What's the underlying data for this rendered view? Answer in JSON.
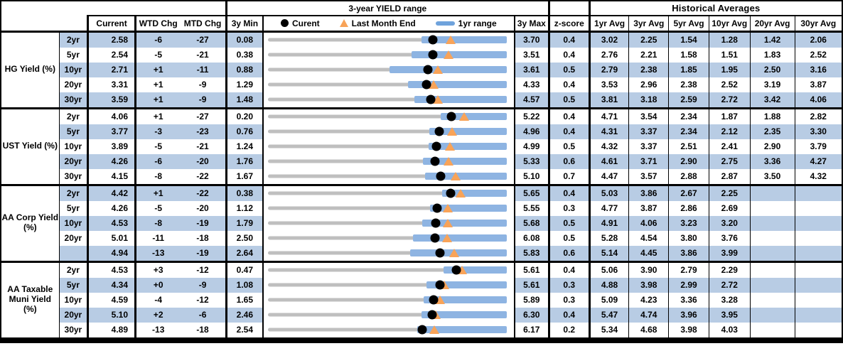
{
  "header": {
    "chart_title": "3-year YIELD range",
    "historical_title": "Historical Averages",
    "col_current": "Current",
    "col_wtd": "WTD Chg",
    "col_mtd": "MTD Chg",
    "col_3y_min": "3y Min",
    "col_3y_max": "3y Max",
    "col_z_score": "z-score",
    "avg_cols": [
      "1yr Avg",
      "3yr Avg",
      "5yr Avg",
      "10yr Avg",
      "20yr Avg",
      "30yr Avg"
    ],
    "legend_current": "Curent",
    "legend_last_month": "Last Month End",
    "legend_range": "1yr range"
  },
  "colors": {
    "row_stripe": "#B8CCE4",
    "range_bar": "#8EB4E2",
    "track_gray": "#BFBFBF",
    "triangle_orange": "#F8A358",
    "legend_dash_blue": "#6FA3DC",
    "dot_black": "#000000"
  },
  "groups": [
    {
      "label": "HG Yield (%)",
      "rows": [
        {
          "tenor": "2yr",
          "current": "2.58",
          "wtd": "-6",
          "mtd": "-27",
          "min": "0.08",
          "max": "3.70",
          "z": "0.4",
          "avgs": [
            "3.02",
            "2.25",
            "1.54",
            "1.28",
            "1.42",
            "2.06"
          ]
        },
        {
          "tenor": "5yr",
          "current": "2.54",
          "wtd": "-5",
          "mtd": "-21",
          "min": "0.38",
          "max": "3.51",
          "z": "0.4",
          "avgs": [
            "2.76",
            "2.21",
            "1.58",
            "1.51",
            "1.83",
            "2.52"
          ]
        },
        {
          "tenor": "10yr",
          "current": "2.71",
          "wtd": "+1",
          "mtd": "-11",
          "min": "0.88",
          "max": "3.61",
          "z": "0.5",
          "avgs": [
            "2.79",
            "2.38",
            "1.85",
            "1.95",
            "2.50",
            "3.16"
          ]
        },
        {
          "tenor": "20yr",
          "current": "3.31",
          "wtd": "+1",
          "mtd": "-9",
          "min": "1.29",
          "max": "4.33",
          "z": "0.4",
          "avgs": [
            "3.53",
            "2.96",
            "2.38",
            "2.52",
            "3.19",
            "3.87"
          ]
        },
        {
          "tenor": "30yr",
          "current": "3.59",
          "wtd": "+1",
          "mtd": "-9",
          "min": "1.48",
          "max": "4.57",
          "z": "0.5",
          "avgs": [
            "3.81",
            "3.18",
            "2.59",
            "2.72",
            "3.42",
            "4.06"
          ]
        }
      ]
    },
    {
      "label": "UST Yield (%)",
      "rows": [
        {
          "tenor": "2yr",
          "current": "4.06",
          "wtd": "+1",
          "mtd": "-27",
          "min": "0.20",
          "max": "5.22",
          "z": "0.4",
          "avgs": [
            "4.71",
            "3.54",
            "2.34",
            "1.87",
            "1.88",
            "2.82"
          ]
        },
        {
          "tenor": "5yr",
          "current": "3.77",
          "wtd": "-3",
          "mtd": "-23",
          "min": "0.76",
          "max": "4.96",
          "z": "0.4",
          "avgs": [
            "4.31",
            "3.37",
            "2.34",
            "2.12",
            "2.35",
            "3.30"
          ]
        },
        {
          "tenor": "10yr",
          "current": "3.89",
          "wtd": "-5",
          "mtd": "-21",
          "min": "1.24",
          "max": "4.99",
          "z": "0.5",
          "avgs": [
            "4.32",
            "3.37",
            "2.51",
            "2.41",
            "2.90",
            "3.79"
          ]
        },
        {
          "tenor": "20yr",
          "current": "4.26",
          "wtd": "-6",
          "mtd": "-20",
          "min": "1.76",
          "max": "5.33",
          "z": "0.6",
          "avgs": [
            "4.61",
            "3.71",
            "2.90",
            "2.75",
            "3.36",
            "4.27"
          ]
        },
        {
          "tenor": "30yr",
          "current": "4.15",
          "wtd": "-8",
          "mtd": "-22",
          "min": "1.67",
          "max": "5.10",
          "z": "0.7",
          "avgs": [
            "4.47",
            "3.57",
            "2.88",
            "2.87",
            "3.50",
            "4.32"
          ]
        }
      ]
    },
    {
      "label": "AA Corp Yield (%)",
      "rows": [
        {
          "tenor": "2yr",
          "current": "4.42",
          "wtd": "+1",
          "mtd": "-22",
          "min": "0.38",
          "max": "5.65",
          "z": "0.4",
          "avgs": [
            "5.03",
            "3.86",
            "2.67",
            "2.25",
            "",
            ""
          ]
        },
        {
          "tenor": "5yr",
          "current": "4.26",
          "wtd": "-5",
          "mtd": "-20",
          "min": "1.12",
          "max": "5.55",
          "z": "0.3",
          "avgs": [
            "4.77",
            "3.87",
            "2.86",
            "2.69",
            "",
            ""
          ]
        },
        {
          "tenor": "10yr",
          "current": "4.53",
          "wtd": "-8",
          "mtd": "-19",
          "min": "1.79",
          "max": "5.68",
          "z": "0.5",
          "avgs": [
            "4.91",
            "4.06",
            "3.23",
            "3.20",
            "",
            ""
          ]
        },
        {
          "tenor": "20yr",
          "current": "5.01",
          "wtd": "-11",
          "mtd": "-18",
          "min": "2.50",
          "max": "6.08",
          "z": "0.5",
          "avgs": [
            "5.28",
            "4.54",
            "3.80",
            "3.76",
            "",
            ""
          ]
        },
        {
          "tenor": "",
          "current": "4.94",
          "wtd": "-13",
          "mtd": "-19",
          "min": "2.64",
          "max": "5.83",
          "z": "0.6",
          "avgs": [
            "5.14",
            "4.45",
            "3.86",
            "3.99",
            "",
            ""
          ]
        }
      ]
    },
    {
      "label": "AA Taxable Muni Yield (%)",
      "rows": [
        {
          "tenor": "2yr",
          "current": "4.53",
          "wtd": "+3",
          "mtd": "-12",
          "min": "0.47",
          "max": "5.61",
          "z": "0.4",
          "avgs": [
            "5.06",
            "3.90",
            "2.79",
            "2.29",
            "",
            ""
          ]
        },
        {
          "tenor": "5yr",
          "current": "4.34",
          "wtd": "+0",
          "mtd": "-9",
          "min": "1.08",
          "max": "5.61",
          "z": "0.3",
          "avgs": [
            "4.88",
            "3.98",
            "2.99",
            "2.72",
            "",
            ""
          ]
        },
        {
          "tenor": "10yr",
          "current": "4.59",
          "wtd": "-4",
          "mtd": "-12",
          "min": "1.65",
          "max": "5.89",
          "z": "0.3",
          "avgs": [
            "5.09",
            "4.23",
            "3.36",
            "3.28",
            "",
            ""
          ]
        },
        {
          "tenor": "20yr",
          "current": "5.10",
          "wtd": "+2",
          "mtd": "-6",
          "min": "2.46",
          "max": "6.30",
          "z": "0.4",
          "avgs": [
            "5.47",
            "4.74",
            "3.96",
            "3.95",
            "",
            ""
          ]
        },
        {
          "tenor": "30yr",
          "current": "4.89",
          "wtd": "-13",
          "mtd": "-18",
          "min": "2.54",
          "max": "6.17",
          "z": "0.2",
          "avgs": [
            "5.34",
            "4.68",
            "3.98",
            "4.03",
            "",
            ""
          ]
        }
      ]
    }
  ],
  "chart_data": {
    "type": "range-strip",
    "title": "3-year YIELD range",
    "legend": [
      "Curent",
      "Last Month End",
      "1yr range"
    ],
    "note": "Each row is scaled from its own 3y Min (left) to 3y Max (right); dot = current yield, triangle = last month end, blue bar = 1yr range",
    "rows": [
      {
        "group": "HG Yield (%)",
        "tenor": "2yr",
        "min_3y": 0.08,
        "max_3y": 3.7,
        "current": 2.58,
        "last_month_end": 2.85,
        "range_1yr": [
          2.41,
          3.7
        ]
      },
      {
        "group": "HG Yield (%)",
        "tenor": "5yr",
        "min_3y": 0.38,
        "max_3y": 3.51,
        "current": 2.54,
        "last_month_end": 2.75,
        "range_1yr": [
          2.26,
          3.51
        ]
      },
      {
        "group": "HG Yield (%)",
        "tenor": "10yr",
        "min_3y": 0.88,
        "max_3y": 3.61,
        "current": 2.71,
        "last_month_end": 2.82,
        "range_1yr": [
          2.27,
          3.61
        ]
      },
      {
        "group": "HG Yield (%)",
        "tenor": "20yr",
        "min_3y": 1.29,
        "max_3y": 4.33,
        "current": 3.31,
        "last_month_end": 3.4,
        "range_1yr": [
          3.07,
          4.33
        ]
      },
      {
        "group": "HG Yield (%)",
        "tenor": "30yr",
        "min_3y": 1.48,
        "max_3y": 4.57,
        "current": 3.59,
        "last_month_end": 3.68,
        "range_1yr": [
          3.38,
          4.57
        ]
      },
      {
        "group": "UST Yield (%)",
        "tenor": "2yr",
        "min_3y": 0.2,
        "max_3y": 5.22,
        "current": 4.06,
        "last_month_end": 4.33,
        "range_1yr": [
          3.84,
          5.22
        ]
      },
      {
        "group": "UST Yield (%)",
        "tenor": "5yr",
        "min_3y": 0.76,
        "max_3y": 4.96,
        "current": 3.77,
        "last_month_end": 4.0,
        "range_1yr": [
          3.6,
          4.96
        ]
      },
      {
        "group": "UST Yield (%)",
        "tenor": "10yr",
        "min_3y": 1.24,
        "max_3y": 4.99,
        "current": 3.89,
        "last_month_end": 4.1,
        "range_1yr": [
          3.76,
          4.99
        ]
      },
      {
        "group": "UST Yield (%)",
        "tenor": "20yr",
        "min_3y": 1.76,
        "max_3y": 5.33,
        "current": 4.26,
        "last_month_end": 4.46,
        "range_1yr": [
          4.08,
          5.33
        ]
      },
      {
        "group": "UST Yield (%)",
        "tenor": "30yr",
        "min_3y": 1.67,
        "max_3y": 5.1,
        "current": 4.15,
        "last_month_end": 4.37,
        "range_1yr": [
          3.93,
          5.1
        ]
      },
      {
        "group": "AA Corp Yield (%)",
        "tenor": "2yr",
        "min_3y": 0.38,
        "max_3y": 5.65,
        "current": 4.42,
        "last_month_end": 4.64,
        "range_1yr": [
          4.23,
          5.65
        ]
      },
      {
        "group": "AA Corp Yield (%)",
        "tenor": "5yr",
        "min_3y": 1.12,
        "max_3y": 5.55,
        "current": 4.26,
        "last_month_end": 4.46,
        "range_1yr": [
          4.13,
          5.55
        ]
      },
      {
        "group": "AA Corp Yield (%)",
        "tenor": "10yr",
        "min_3y": 1.79,
        "max_3y": 5.68,
        "current": 4.53,
        "last_month_end": 4.72,
        "range_1yr": [
          4.3,
          5.68
        ]
      },
      {
        "group": "AA Corp Yield (%)",
        "tenor": "20yr",
        "min_3y": 2.5,
        "max_3y": 6.08,
        "current": 5.01,
        "last_month_end": 5.19,
        "range_1yr": [
          4.68,
          6.08
        ]
      },
      {
        "group": "AA Corp Yield (%)",
        "tenor": "30yr",
        "min_3y": 2.64,
        "max_3y": 5.83,
        "current": 4.94,
        "last_month_end": 5.13,
        "range_1yr": [
          4.54,
          5.83
        ]
      },
      {
        "group": "AA Taxable Muni Yield (%)",
        "tenor": "2yr",
        "min_3y": 0.47,
        "max_3y": 5.61,
        "current": 4.53,
        "last_month_end": 4.65,
        "range_1yr": [
          4.25,
          5.61
        ]
      },
      {
        "group": "AA Taxable Muni Yield (%)",
        "tenor": "5yr",
        "min_3y": 1.08,
        "max_3y": 5.61,
        "current": 4.34,
        "last_month_end": 4.43,
        "range_1yr": [
          4.09,
          5.61
        ]
      },
      {
        "group": "AA Taxable Muni Yield (%)",
        "tenor": "10yr",
        "min_3y": 1.65,
        "max_3y": 5.89,
        "current": 4.59,
        "last_month_end": 4.71,
        "range_1yr": [
          4.41,
          5.89
        ]
      },
      {
        "group": "AA Taxable Muni Yield (%)",
        "tenor": "20yr",
        "min_3y": 2.46,
        "max_3y": 6.3,
        "current": 5.1,
        "last_month_end": 5.16,
        "range_1yr": [
          4.93,
          6.3
        ]
      },
      {
        "group": "AA Taxable Muni Yield (%)",
        "tenor": "30yr",
        "min_3y": 2.54,
        "max_3y": 6.17,
        "current": 4.89,
        "last_month_end": 5.07,
        "range_1yr": [
          4.81,
          6.17
        ]
      }
    ]
  }
}
